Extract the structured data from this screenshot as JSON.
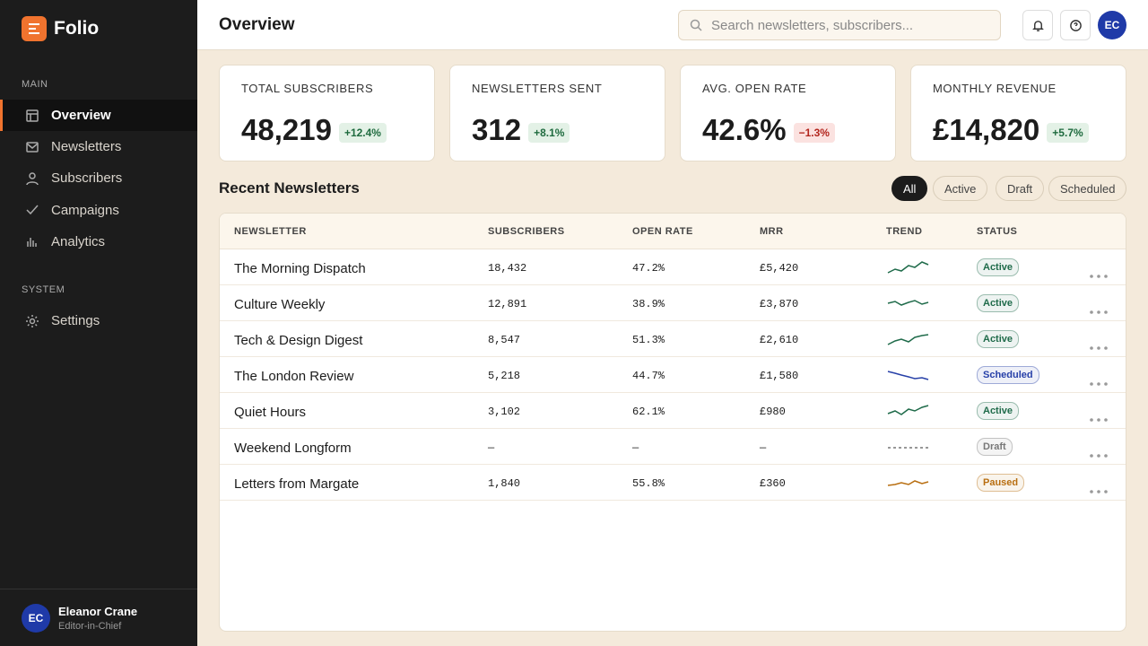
{
  "brand": "Folio",
  "nav": [
    {
      "title": "MAIN",
      "items": [
        "Overview",
        "Newsletters",
        "Subscribers",
        "Campaigns",
        "Analytics"
      ]
    },
    {
      "title": "SYSTEM",
      "items": [
        "Settings"
      ]
    }
  ],
  "user": {
    "initials": "EC",
    "name": "Eleanor Crane",
    "role": "Editor-in-Chief"
  },
  "header": {
    "title": "Overview",
    "search_placeholder": "Search newsletters, subscribers...",
    "avatar": "EC"
  },
  "stats": [
    {
      "label": "TOTAL SUBSCRIBERS",
      "value": "48,219",
      "change": "+12.4%"
    },
    {
      "label": "NEWSLETTERS SENT",
      "value": "312",
      "change": "+8.1%"
    },
    {
      "label": "AVG. OPEN RATE",
      "value": "42.6%",
      "change": "−1.3%"
    },
    {
      "label": "MONTHLY REVENUE",
      "value": "£14,820",
      "change": "+5.7%"
    }
  ],
  "section_title": "Recent Newsletters",
  "filters": [
    "All",
    "Active",
    "Draft",
    "Scheduled"
  ],
  "table": {
    "columns": [
      "NEWSLETTER",
      "SUBSCRIBERS",
      "OPEN RATE",
      "MRR",
      "TREND",
      "STATUS"
    ],
    "rows": [
      {
        "name": "The Morning Dispatch",
        "subscribers": "18,432",
        "open_rate": "47.2%",
        "mrr": "£5,420",
        "status": "Active",
        "color": "#1f6b4a"
      },
      {
        "name": "Culture Weekly",
        "subscribers": "12,891",
        "open_rate": "38.9%",
        "mrr": "£3,870",
        "status": "Active",
        "color": "#1f6b4a"
      },
      {
        "name": "Tech & Design Digest",
        "subscribers": "8,547",
        "open_rate": "51.3%",
        "mrr": "£2,610",
        "status": "Active",
        "color": "#1f6b4a"
      },
      {
        "name": "The London Review",
        "subscribers": "5,218",
        "open_rate": "44.7%",
        "mrr": "£1,580",
        "status": "Scheduled",
        "color": "#2740a8"
      },
      {
        "name": "Quiet Hours",
        "subscribers": "3,102",
        "open_rate": "62.1%",
        "mrr": "£980",
        "status": "Active",
        "color": "#1f6b4a"
      },
      {
        "name": "Weekend Longform",
        "subscribers": "—",
        "open_rate": "—",
        "mrr": "—",
        "status": "Draft",
        "color": "#777777"
      },
      {
        "name": "Letters from Margate",
        "subscribers": "1,840",
        "open_rate": "55.8%",
        "mrr": "£360",
        "status": "Paused",
        "color": "#b86e10"
      }
    ]
  }
}
